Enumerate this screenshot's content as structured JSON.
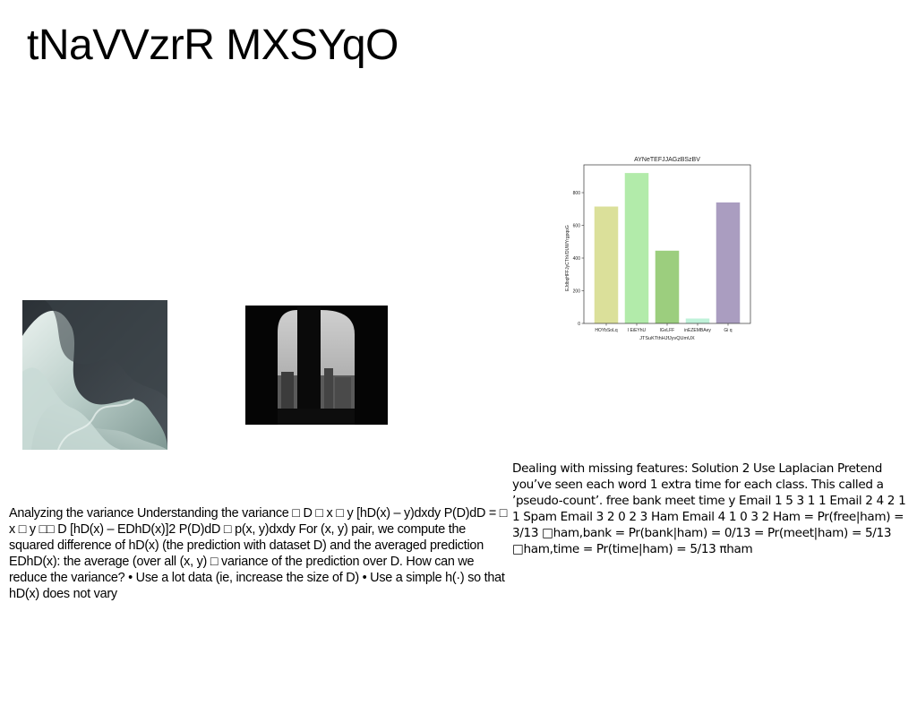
{
  "slide": {
    "title": "tNaVVzrR MXSYqO"
  },
  "text_blocks": {
    "left": "Analyzing the variance Understanding the variance □ D □ x □ y [hD(x) – y)dxdy P(D)dD = □ x □ y □□ D [hD(x) – EDhD(x)]2 P(D)dD □ p(x, y)dxdy For (x, y) pair, we compute the squared difference of hD(x) (the prediction with dataset D) and the averaged prediction EDhD(x): the average (over all (x, y) □ variance of the prediction over D. How can we reduce the variance? • Use a lot data (ie, increase the size of D) • Use a simple h(·) so that hD(x) does not vary",
    "right": "Dealing with missing features: Solution 2 Use Laplacian Pretend you’ve seen each word 1 extra time for each class. This called a ’pseudo-count’. free bank meet time y Email 1 5 3 1 1 Email 2 4 2 1 1 Spam Email 3 2 0 2 3 Ham Email 4 1 0 3 2 Ham = Pr(free|ham) = 3/13 □ham,bank = Pr(bank|ham) = 0/13 = Pr(meet|ham) = 5/13 □ham,time = Pr(time|ham) = 5/13 πham"
  },
  "images": {
    "abstract_icon": "abstract-wave-image",
    "window_icon": "parliament-window-image"
  },
  "chart_data": {
    "type": "bar",
    "title": "AYNeTEFJJAGzBSzBV",
    "xlabel": "JTSuKTthHJfJyvQUmUX",
    "ylabel": "EJdbqHFFJyCThVDUWYrgpqoG",
    "categories": [
      "HOYbSoLq",
      "I EiEYhU",
      "lGvLFF",
      "inEZEMBAey",
      "Gi q"
    ],
    "values": [
      715,
      920,
      445,
      30,
      740
    ],
    "colors": [
      "#dbe09a",
      "#b2ebaa",
      "#9cce7e",
      "#bff2d9",
      "#aa9dc0"
    ],
    "ylim": [
      0,
      970
    ],
    "yticks": [
      0,
      200,
      400,
      600,
      800
    ],
    "grid": false,
    "legend": "none"
  }
}
